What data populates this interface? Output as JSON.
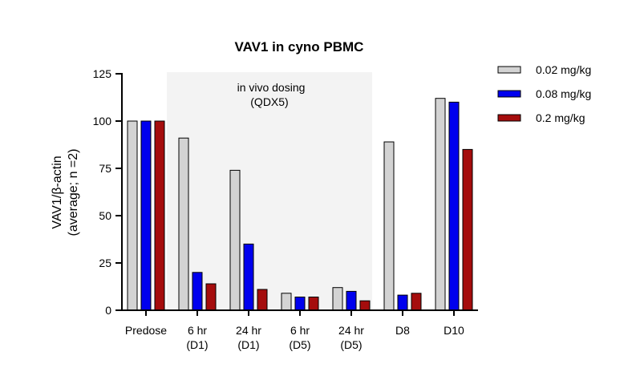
{
  "chart_data": {
    "type": "bar",
    "title": "VAV1 in cyno PBMC",
    "ylabel_line1": "VAV1/β-actin",
    "ylabel_line2": "(average; n =2)",
    "xlabel": "",
    "ylim": [
      0,
      125
    ],
    "yticks": [
      0,
      25,
      50,
      75,
      100,
      125
    ],
    "grid": false,
    "legend_position": "top-right",
    "categories": [
      {
        "line1": "Predose",
        "line2": ""
      },
      {
        "line1": "6 hr",
        "line2": "(D1)"
      },
      {
        "line1": "24 hr",
        "line2": "(D1)"
      },
      {
        "line1": "6 hr",
        "line2": "(D5)"
      },
      {
        "line1": "24 hr",
        "line2": "(D5)"
      },
      {
        "line1": "D8",
        "line2": ""
      },
      {
        "line1": "D10",
        "line2": ""
      }
    ],
    "series": [
      {
        "name": "0.02 mg/kg",
        "color": "#d3d3d3",
        "values": [
          100,
          91,
          74,
          9,
          12,
          89,
          112
        ]
      },
      {
        "name": "0.08 mg/kg",
        "color": "#0000ee",
        "values": [
          100,
          20,
          35,
          7,
          10,
          8,
          110
        ]
      },
      {
        "name": "0.2 mg/kg",
        "color": "#a50d0d",
        "values": [
          100,
          14,
          11,
          7,
          5,
          9,
          85
        ]
      }
    ],
    "shaded_region": {
      "start_category": 1,
      "end_category": 4,
      "label_line1": "in vivo dosing",
      "label_line2": "(QDX5)",
      "color": "#f3f3f3"
    }
  }
}
